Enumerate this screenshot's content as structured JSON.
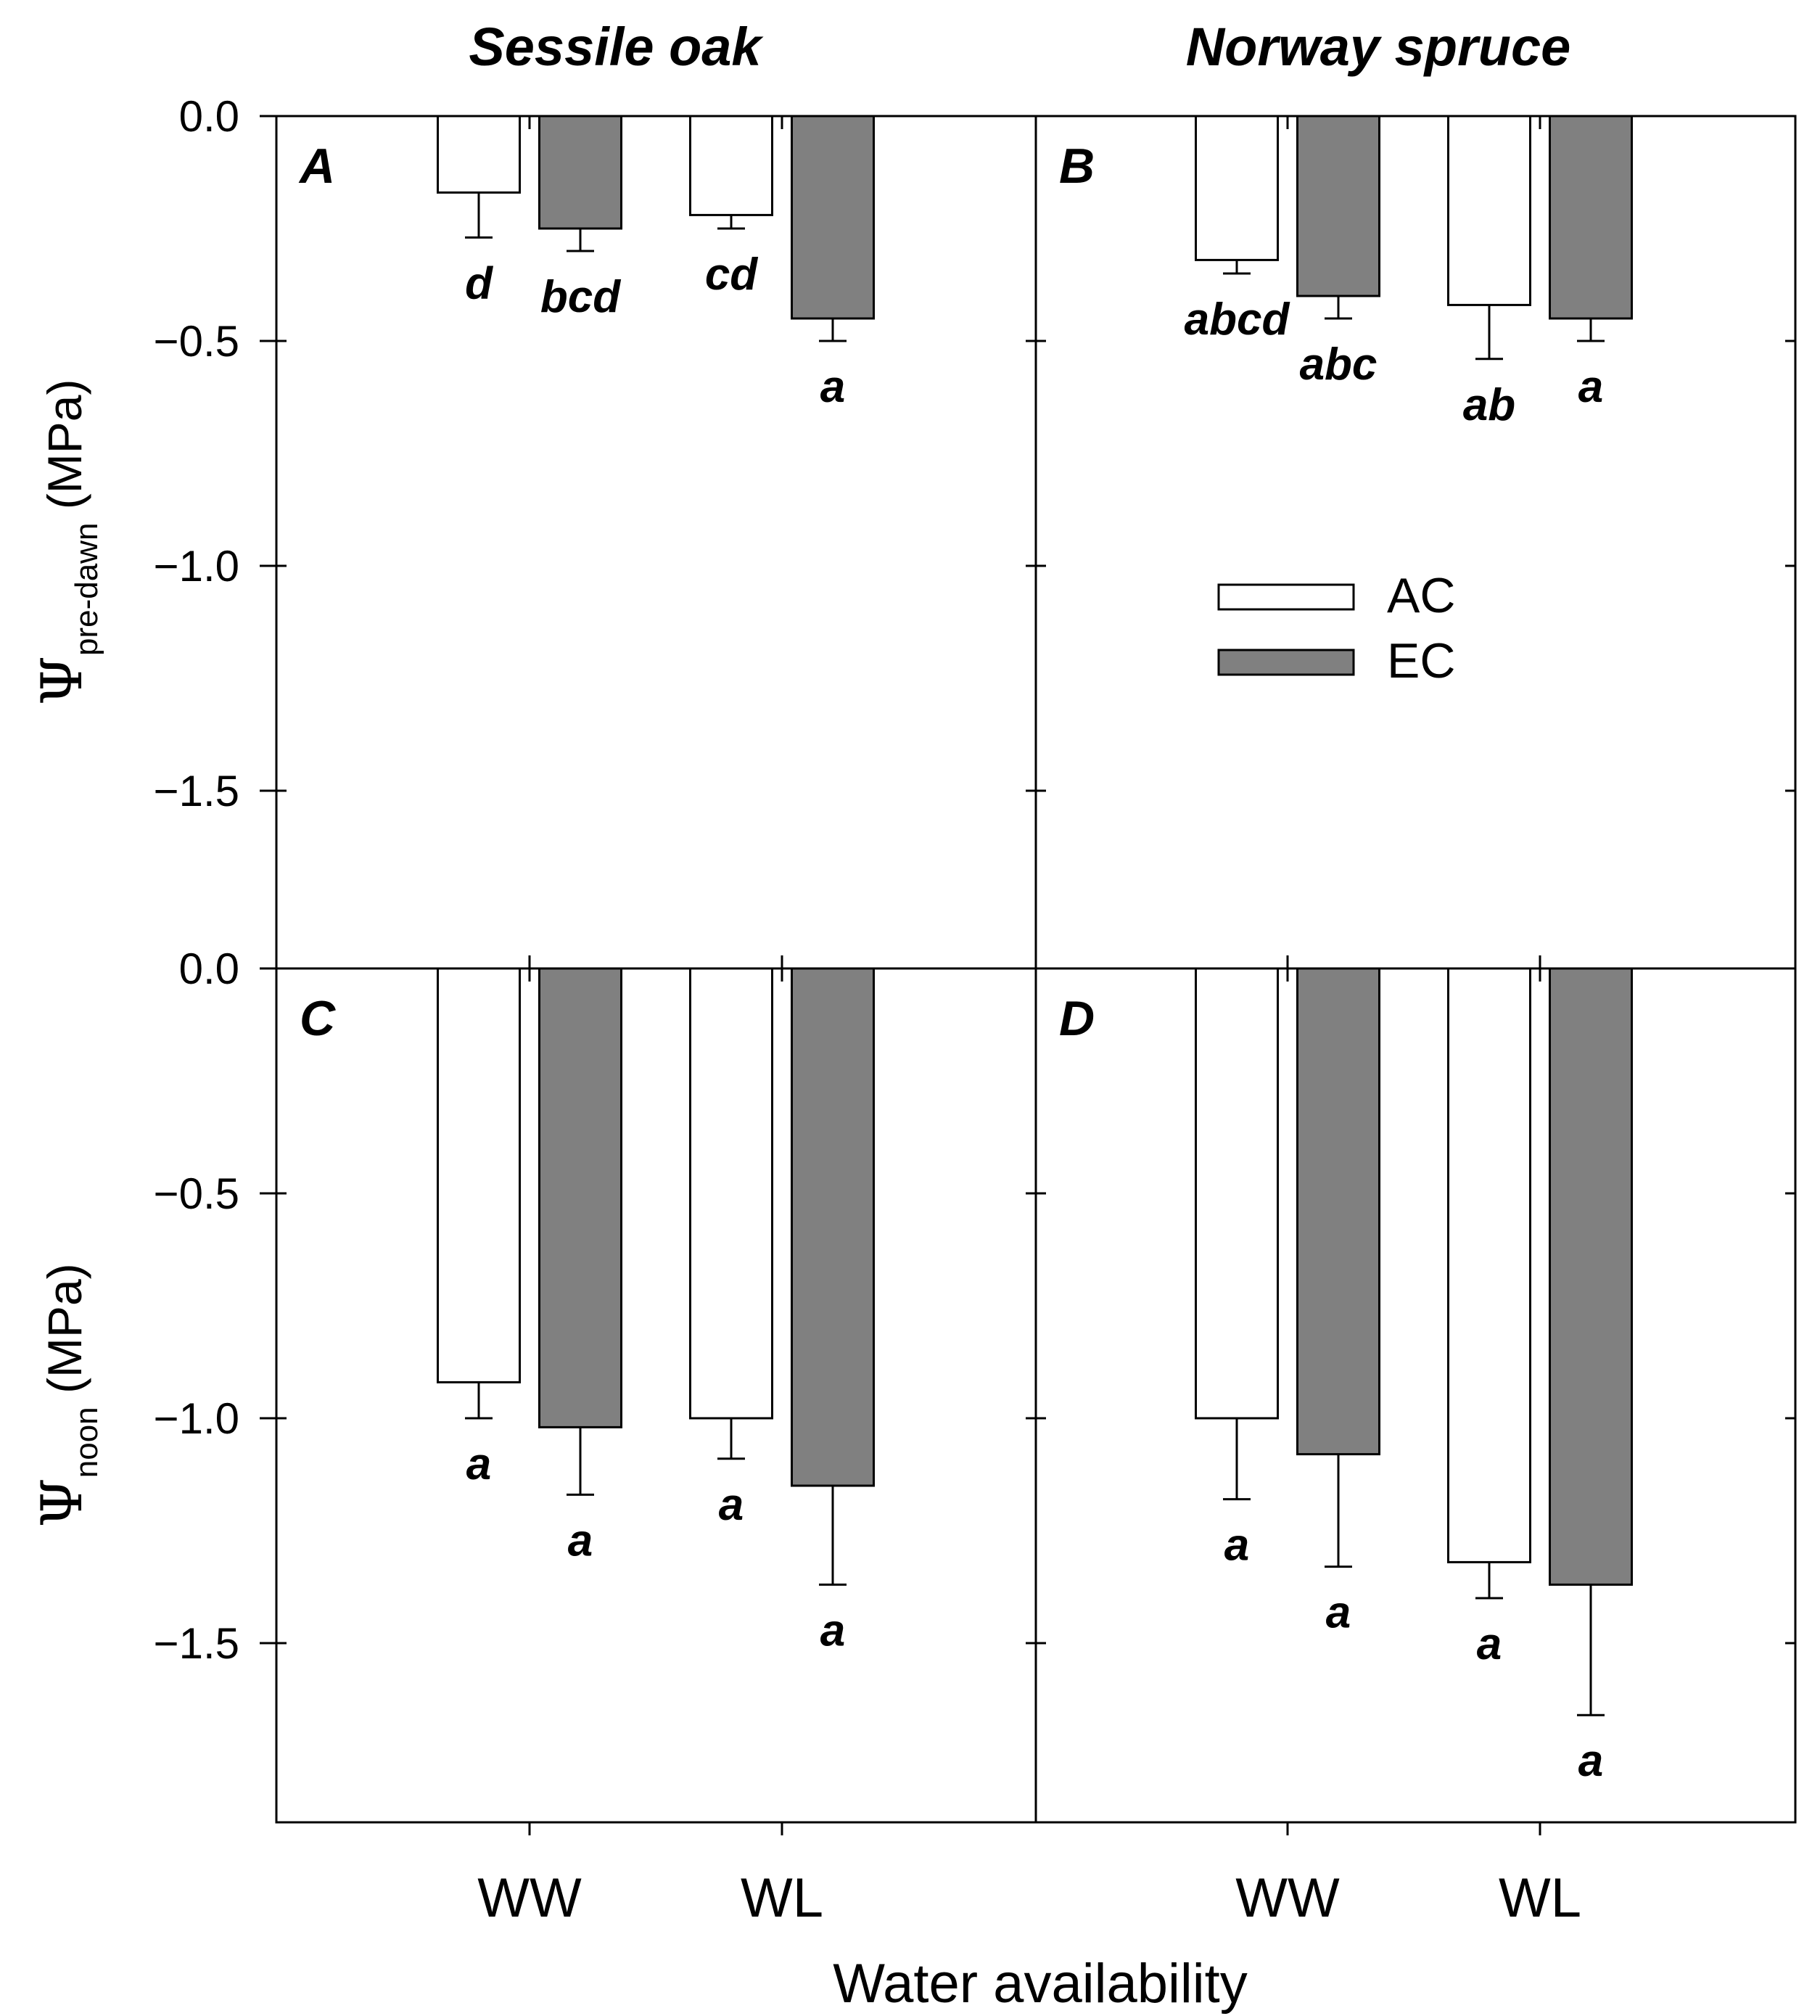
{
  "chart_data": {
    "type": "bar",
    "column_titles": [
      "Sessile oak",
      "Norway spruce"
    ],
    "xlabel": "Water availability",
    "categories": [
      "WW",
      "WL"
    ],
    "legend": {
      "position": "upper-right of panel B",
      "entries": [
        {
          "name": "AC",
          "color": "#ffffff"
        },
        {
          "name": "EC",
          "color": "#808080"
        }
      ]
    },
    "ylim": [
      -1.9,
      0.0
    ],
    "rows": [
      {
        "ylabel_symbol": "Ψ",
        "ylabel_sub": "pre-dawn",
        "ylabel_unit": " (MPa)",
        "yticks": [
          "0.0",
          "−0.5",
          "−1.0",
          "−1.5"
        ],
        "ytick_values": [
          0,
          -0.5,
          -1.0,
          -1.5
        ]
      },
      {
        "ylabel_symbol": "Ψ",
        "ylabel_sub": "noon",
        "ylabel_unit": " (MPa)",
        "yticks": [
          "0.0",
          "−0.5",
          "−1.0",
          "−1.5"
        ],
        "ytick_values": [
          0,
          -0.5,
          -1.0,
          -1.5
        ]
      }
    ],
    "panels": [
      {
        "id": "A",
        "row": 0,
        "col": 0,
        "series": [
          {
            "name": "AC",
            "values": [
              -0.17,
              -0.22
            ],
            "errors": [
              0.1,
              0.03
            ],
            "letters": [
              "d",
              "cd"
            ]
          },
          {
            "name": "EC",
            "values": [
              -0.25,
              -0.45
            ],
            "errors": [
              0.05,
              0.05
            ],
            "letters": [
              "bcd",
              "a"
            ]
          }
        ]
      },
      {
        "id": "B",
        "row": 0,
        "col": 1,
        "series": [
          {
            "name": "AC",
            "values": [
              -0.32,
              -0.42
            ],
            "errors": [
              0.03,
              0.12
            ],
            "letters": [
              "abcd",
              "ab"
            ]
          },
          {
            "name": "EC",
            "values": [
              -0.4,
              -0.45
            ],
            "errors": [
              0.05,
              0.05
            ],
            "letters": [
              "abc",
              "a"
            ]
          }
        ]
      },
      {
        "id": "C",
        "row": 1,
        "col": 0,
        "series": [
          {
            "name": "AC",
            "values": [
              -0.92,
              -1.0
            ],
            "errors": [
              0.08,
              0.09
            ],
            "letters": [
              "a",
              "a"
            ]
          },
          {
            "name": "EC",
            "values": [
              -1.02,
              -1.15
            ],
            "errors": [
              0.15,
              0.22
            ],
            "letters": [
              "a",
              "a"
            ]
          }
        ]
      },
      {
        "id": "D",
        "row": 1,
        "col": 1,
        "series": [
          {
            "name": "AC",
            "values": [
              -1.0,
              -1.32
            ],
            "errors": [
              0.18,
              0.08
            ],
            "letters": [
              "a",
              "a"
            ]
          },
          {
            "name": "EC",
            "values": [
              -1.08,
              -1.37
            ],
            "errors": [
              0.25,
              0.29
            ],
            "letters": [
              "a",
              "a"
            ]
          }
        ]
      }
    ]
  }
}
